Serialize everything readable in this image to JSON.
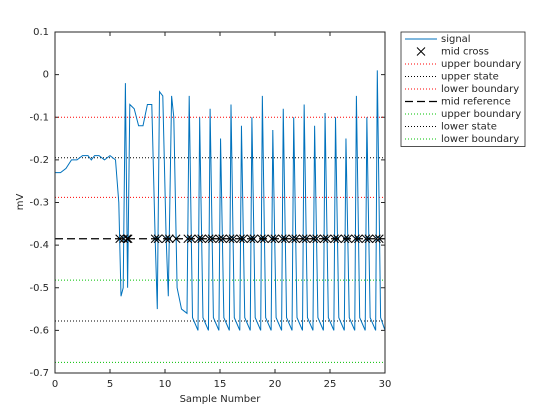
{
  "chart_data": {
    "type": "line",
    "xlabel": "Sample Number",
    "ylabel": "mV",
    "xlim": [
      0,
      30
    ],
    "ylim": [
      -0.7,
      0.1
    ],
    "xticks": [
      0,
      5,
      10,
      15,
      20,
      25,
      30
    ],
    "yticks": [
      -0.7,
      -0.6,
      -0.5,
      -0.4,
      -0.3,
      -0.2,
      -0.1,
      0,
      0.1
    ],
    "series": [
      {
        "name": "signal",
        "type": "line",
        "color": "#0072bd",
        "linestyle": "solid",
        "x": [
          0,
          0.5,
          1,
          1.5,
          2,
          2.5,
          3,
          3.3,
          3.6,
          4,
          4.5,
          5,
          5.5,
          5.8,
          6,
          6.2,
          6.4,
          6.6,
          6.8,
          7.2,
          7.6,
          8,
          8.4,
          8.8,
          9.1,
          9.3,
          9.5,
          9.8,
          10.1,
          10.3,
          10.6,
          10.8,
          11.1,
          11.5,
          12,
          12.2,
          12.5,
          13.0,
          13.15,
          13.45,
          13.95,
          14.1,
          14.4,
          14.9,
          15.05,
          15.35,
          15.85,
          16.0,
          16.3,
          16.8,
          16.95,
          17.25,
          17.75,
          17.9,
          18.2,
          18.7,
          18.85,
          19.15,
          19.65,
          19.8,
          20.1,
          20.6,
          20.75,
          21.05,
          21.55,
          21.7,
          22.0,
          22.5,
          22.65,
          22.95,
          23.45,
          23.6,
          23.9,
          24.4,
          24.55,
          24.85,
          25.35,
          25.5,
          25.8,
          26.3,
          26.45,
          26.75,
          27.25,
          27.4,
          27.7,
          28.2,
          28.35,
          28.65,
          29.15,
          29.3,
          29.6,
          30.0
        ],
        "values": [
          -0.23,
          -0.23,
          -0.22,
          -0.2,
          -0.2,
          -0.19,
          -0.19,
          -0.2,
          -0.19,
          -0.19,
          -0.2,
          -0.19,
          -0.2,
          -0.3,
          -0.52,
          -0.5,
          -0.02,
          -0.5,
          -0.07,
          -0.08,
          -0.12,
          -0.12,
          -0.07,
          -0.07,
          -0.38,
          -0.55,
          -0.04,
          -0.05,
          -0.38,
          -0.52,
          -0.05,
          -0.1,
          -0.5,
          -0.55,
          -0.56,
          -0.05,
          -0.57,
          -0.6,
          -0.1,
          -0.57,
          -0.6,
          -0.08,
          -0.57,
          -0.6,
          -0.15,
          -0.57,
          -0.6,
          -0.07,
          -0.57,
          -0.6,
          -0.12,
          -0.57,
          -0.6,
          -0.1,
          -0.57,
          -0.6,
          -0.05,
          -0.57,
          -0.6,
          -0.13,
          -0.57,
          -0.6,
          -0.08,
          -0.57,
          -0.6,
          -0.1,
          -0.57,
          -0.6,
          -0.07,
          -0.57,
          -0.6,
          -0.12,
          -0.57,
          -0.6,
          -0.09,
          -0.57,
          -0.6,
          -0.1,
          -0.57,
          -0.6,
          -0.15,
          -0.57,
          -0.6,
          -0.05,
          -0.57,
          -0.6,
          -0.1,
          -0.57,
          -0.6,
          0.01,
          -0.57,
          -0.6
        ]
      },
      {
        "name": "mid cross",
        "type": "scatter",
        "color": "#000000",
        "x": [
          5.88,
          6.25,
          6.55,
          6.65,
          9.1,
          9.36,
          10.1,
          10.39,
          11.01,
          12.07,
          12.38,
          13.07,
          13.33,
          14.02,
          14.28,
          14.97,
          15.23,
          15.92,
          16.18,
          16.87,
          17.13,
          17.82,
          18.08,
          18.77,
          19.03,
          19.72,
          19.98,
          20.67,
          20.93,
          21.62,
          21.88,
          22.57,
          22.83,
          23.52,
          23.78,
          24.47,
          24.73,
          25.42,
          25.68,
          26.37,
          26.63,
          27.32,
          27.58,
          28.27,
          28.53,
          29.22,
          29.48
        ],
        "values": [
          -0.385,
          -0.385,
          -0.385,
          -0.385,
          -0.385,
          -0.385,
          -0.385,
          -0.385,
          -0.385,
          -0.385,
          -0.385,
          -0.385,
          -0.385,
          -0.385,
          -0.385,
          -0.385,
          -0.385,
          -0.385,
          -0.385,
          -0.385,
          -0.385,
          -0.385,
          -0.385,
          -0.385,
          -0.385,
          -0.385,
          -0.385,
          -0.385,
          -0.385,
          -0.385,
          -0.385,
          -0.385,
          -0.385,
          -0.385,
          -0.385,
          -0.385,
          -0.385,
          -0.385,
          -0.385,
          -0.385,
          -0.385,
          -0.385,
          -0.385,
          -0.385,
          -0.385,
          -0.385,
          -0.385
        ]
      },
      {
        "name": "upper boundary",
        "type": "hline",
        "color": "#ff0000",
        "linestyle": "dotted",
        "values": [
          -0.1
        ]
      },
      {
        "name": "upper state",
        "type": "hline",
        "color": "#000000",
        "linestyle": "dotted",
        "values": [
          -0.195
        ]
      },
      {
        "name": "lower boundary",
        "type": "hline",
        "color": "#ff0000",
        "linestyle": "dotted",
        "values": [
          -0.288
        ]
      },
      {
        "name": "mid reference",
        "type": "hline",
        "color": "#000000",
        "linestyle": "dashed",
        "values": [
          -0.385
        ]
      },
      {
        "name": "upper boundary",
        "type": "hline",
        "color": "#00c000",
        "linestyle": "dotted",
        "values": [
          -0.482
        ]
      },
      {
        "name": "lower state",
        "type": "hline",
        "color": "#000000",
        "linestyle": "dotted",
        "values": [
          -0.578
        ]
      },
      {
        "name": "lower boundary",
        "type": "hline",
        "color": "#00c000",
        "linestyle": "dotted",
        "values": [
          -0.675
        ]
      }
    ]
  }
}
